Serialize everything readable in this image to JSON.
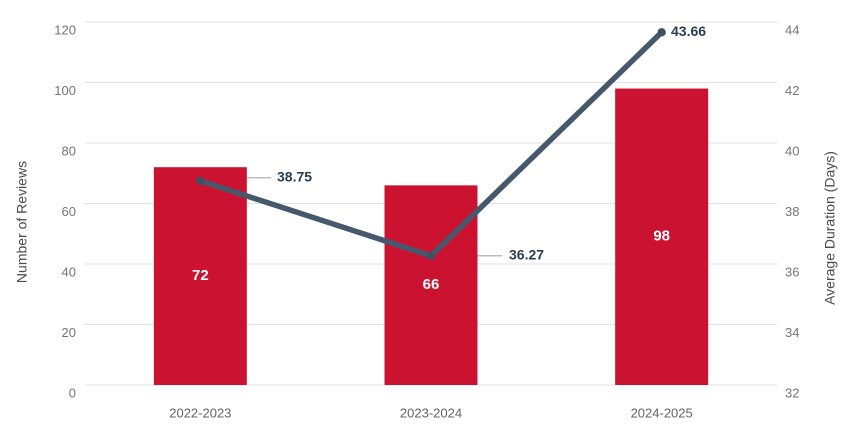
{
  "colors": {
    "background": "#ffffff",
    "bar": "#cb1230",
    "line": "#46586b",
    "point": "#3f5063",
    "line_value_label": "#2b3e51",
    "bar_value_label": "#ffffff",
    "grid": "#e2e2e2",
    "tick_label": "#757575",
    "axis_title": "#4b4b4b",
    "category_label": "#646464",
    "leader_line": "#a6a6a6"
  },
  "chart_data": {
    "type": "combo-bar-line",
    "title": "",
    "categories": [
      "2022-2023",
      "2023-2024",
      "2024-2025"
    ],
    "series": [
      {
        "name": "Number of Reviews",
        "type": "bar",
        "axis": "left",
        "values": [
          72,
          66,
          98
        ],
        "labels": [
          "72",
          "66",
          "98"
        ]
      },
      {
        "name": "Average Duration (Days)",
        "type": "line",
        "axis": "right",
        "values": [
          38.75,
          36.27,
          43.66
        ],
        "labels": [
          "38.75",
          "36.27",
          "43.66"
        ]
      }
    ],
    "axes": {
      "left": {
        "title": "Number of Reviews",
        "min": 0,
        "max": 120,
        "ticks": [
          "0",
          "20",
          "40",
          "60",
          "80",
          "100",
          "120"
        ]
      },
      "right": {
        "title": "Average Duration (Days)",
        "min": 32,
        "max": 44,
        "ticks": [
          "32",
          "34",
          "36",
          "38",
          "40",
          "42",
          "44"
        ]
      }
    },
    "grid": "horizontal",
    "legend": "none"
  }
}
